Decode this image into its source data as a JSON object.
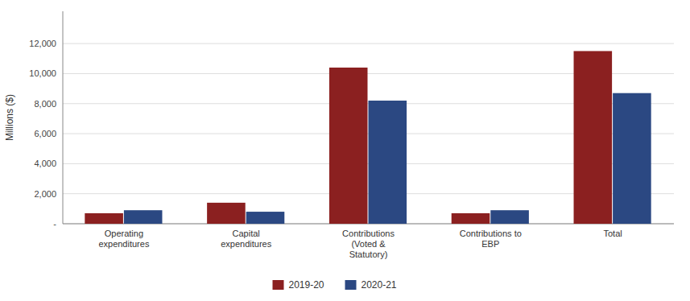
{
  "chart_data": {
    "type": "bar",
    "categories": [
      "Operating\nexpenditures",
      "Capital\nexpenditures",
      "Contributions\n(Voted &\nStatutory)",
      "Contributions to\nEBP",
      "Total"
    ],
    "series": [
      {
        "name": "2019-20",
        "color": "#8B2020",
        "values": [
          700,
          1400,
          10400,
          700,
          11500
        ]
      },
      {
        "name": "2020-21",
        "color": "#2B4882",
        "values": [
          900,
          800,
          8200,
          900,
          8700
        ]
      }
    ],
    "y_label": "Millions ($)",
    "ylim": [
      0,
      14150
    ],
    "yticks": [
      {
        "value": 0,
        "label": "-"
      },
      {
        "value": 2000,
        "label": "2,000"
      },
      {
        "value": 4000,
        "label": "4,000"
      },
      {
        "value": 6000,
        "label": "6,000"
      },
      {
        "value": 8000,
        "label": "8,000"
      },
      {
        "value": 10000,
        "label": "10,000"
      },
      {
        "value": 12000,
        "label": "12,000"
      }
    ],
    "grid": true,
    "legend": "bottom"
  }
}
